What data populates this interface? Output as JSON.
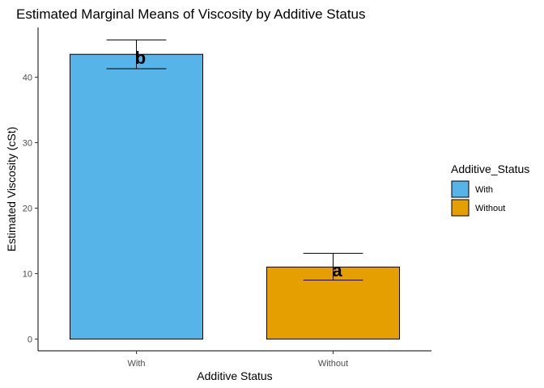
{
  "chart_data": {
    "type": "bar",
    "title": "Estimated Marginal Means of Viscosity by Additive Status",
    "xlabel": "Additive Status",
    "ylabel": "Estimated Viscosity (cSt)",
    "categories": [
      "With",
      "Without"
    ],
    "values": [
      43.5,
      11.0
    ],
    "error_low": [
      41.3,
      9.0
    ],
    "error_high": [
      45.7,
      13.1
    ],
    "letters": [
      "b",
      "a"
    ],
    "colors": [
      "#56B4E9",
      "#E69F00"
    ],
    "ylim": [
      -1.8,
      47.6
    ],
    "yticks": [
      0,
      10,
      20,
      30,
      40
    ],
    "grid": false,
    "legend": {
      "title": "Additive_Status",
      "position": "right",
      "entries": [
        "With",
        "Without"
      ]
    }
  }
}
